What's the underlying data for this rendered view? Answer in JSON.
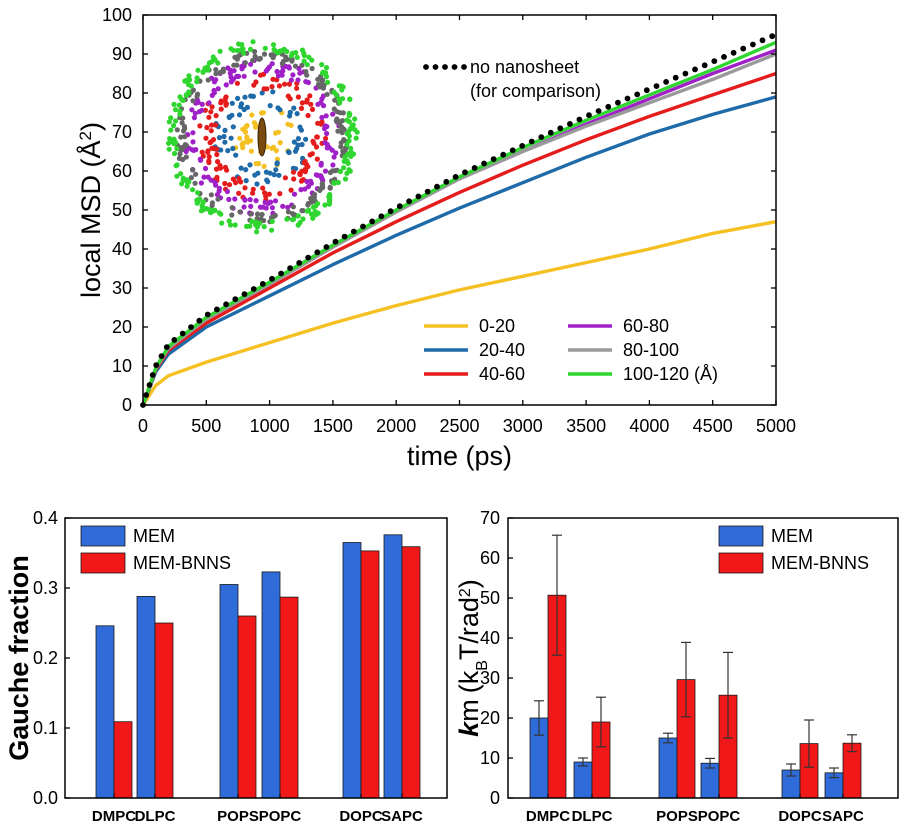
{
  "colors": {
    "mem": "#2f6bd9",
    "mem_bnns": "#f01818",
    "black": "#000000"
  },
  "chart_data": [
    {
      "type": "line",
      "title": "",
      "xlabel": "time (ps)",
      "ylabel": "local MSD (Å",
      "ylabel_superscript": "2",
      "ylabel_suffix": ")",
      "xlim": [
        0,
        5000
      ],
      "ylim": [
        0,
        100
      ],
      "xticks": [
        0,
        500,
        1000,
        1500,
        2000,
        2500,
        3000,
        3500,
        4000,
        4500,
        5000
      ],
      "yticks": [
        0,
        10,
        20,
        30,
        40,
        50,
        60,
        70,
        80,
        90,
        100
      ],
      "legend_placement": "bottom-right",
      "annotation": [
        "no nanosheet",
        "(for comparison)"
      ],
      "series": [
        {
          "name": "0-20",
          "color": "#f4c022",
          "x": [
            0,
            100,
            200,
            500,
            1000,
            1500,
            2000,
            2500,
            3000,
            3500,
            4000,
            4500,
            5000
          ],
          "y": [
            0,
            5,
            7.5,
            11,
            16,
            21,
            25.5,
            29.5,
            33,
            36.5,
            40,
            44,
            47
          ]
        },
        {
          "name": "20-40",
          "color": "#1f6aa8",
          "x": [
            0,
            100,
            200,
            500,
            1000,
            1500,
            2000,
            2500,
            3000,
            3500,
            4000,
            4500,
            5000
          ],
          "y": [
            0,
            8.5,
            13,
            20,
            28,
            36,
            43.5,
            50.5,
            57,
            63.5,
            69.5,
            74.5,
            79
          ]
        },
        {
          "name": "40-60",
          "color": "#e51c1c",
          "x": [
            0,
            100,
            200,
            500,
            1000,
            1500,
            2000,
            2500,
            3000,
            3500,
            4000,
            4500,
            5000
          ],
          "y": [
            0,
            9,
            14,
            21,
            30,
            39,
            47,
            54.5,
            61.5,
            68,
            74,
            79.5,
            85
          ]
        },
        {
          "name": "60-80",
          "color": "#a020c8",
          "x": [
            0,
            100,
            200,
            500,
            1000,
            1500,
            2000,
            2500,
            3000,
            3500,
            4000,
            4500,
            5000
          ],
          "y": [
            0,
            9.3,
            14.5,
            22,
            31,
            40.5,
            49.5,
            58,
            65,
            72,
            78.5,
            85,
            91
          ]
        },
        {
          "name": "80-100",
          "color": "#9a9a9a",
          "x": [
            0,
            100,
            200,
            500,
            1000,
            1500,
            2000,
            2500,
            3000,
            3500,
            4000,
            4500,
            5000
          ],
          "y": [
            0,
            9.3,
            14.5,
            22,
            31,
            40.5,
            49.5,
            58,
            65,
            71.5,
            77.5,
            83.5,
            90
          ]
        },
        {
          "name": "100-120 (Å)",
          "color": "#2fd62f",
          "x": [
            0,
            100,
            200,
            500,
            1000,
            1500,
            2000,
            2500,
            3000,
            3500,
            4000,
            4500,
            5000
          ],
          "y": [
            0,
            9.5,
            15,
            22.5,
            31.5,
            41,
            50,
            58.5,
            66,
            73,
            79.5,
            86,
            93
          ]
        },
        {
          "name": "no nanosheet",
          "color": "#000000",
          "style": "dotted",
          "x": [
            0,
            100,
            200,
            500,
            1000,
            1500,
            2000,
            2500,
            3000,
            3500,
            4000,
            4500,
            5000
          ],
          "y": [
            0,
            10,
            15.5,
            23,
            32,
            41.5,
            50.5,
            59,
            66.5,
            74,
            81,
            88,
            95
          ]
        }
      ]
    },
    {
      "type": "bar",
      "title": "",
      "xlabel": "",
      "ylabel": "Gauche fraction",
      "ylim": [
        0,
        0.4
      ],
      "yticks": [
        "0.0",
        "0.1",
        "0.2",
        "0.3",
        "0.4"
      ],
      "categories": [
        "DMPC",
        "DLPC",
        "POPS",
        "POPC",
        "DOPC",
        "SAPC"
      ],
      "legend_placement": "top-left",
      "series": [
        {
          "name": "MEM",
          "values": [
            0.246,
            0.288,
            0.305,
            0.323,
            0.365,
            0.376
          ]
        },
        {
          "name": "MEM-BNNS",
          "values": [
            0.109,
            0.25,
            0.26,
            0.287,
            0.353,
            0.359
          ]
        }
      ]
    },
    {
      "type": "bar",
      "title": "",
      "xlabel": "",
      "ylabel_parts": {
        "k": "k",
        "m": "m",
        "open": "(k",
        "sub": "B",
        "mid": "T/rad",
        "sup": "2",
        "close": ")"
      },
      "ylim": [
        0,
        70
      ],
      "yticks": [
        "0",
        "10",
        "20",
        "30",
        "40",
        "50",
        "60",
        "70"
      ],
      "categories": [
        "DMPC",
        "DLPC",
        "POPS",
        "POPC",
        "DOPC",
        "SAPC"
      ],
      "legend_placement": "top-right",
      "series": [
        {
          "name": "MEM",
          "values": [
            20,
            9,
            15,
            8.7,
            7,
            6.3
          ],
          "errors": [
            4.3,
            1,
            1.2,
            1.2,
            1.5,
            1.2
          ]
        },
        {
          "name": "MEM-BNNS",
          "values": [
            50.7,
            19,
            29.6,
            25.7,
            13.6,
            13.7
          ],
          "errors": [
            15,
            6.2,
            9.3,
            10.7,
            5.9,
            2.1
          ]
        }
      ]
    }
  ]
}
